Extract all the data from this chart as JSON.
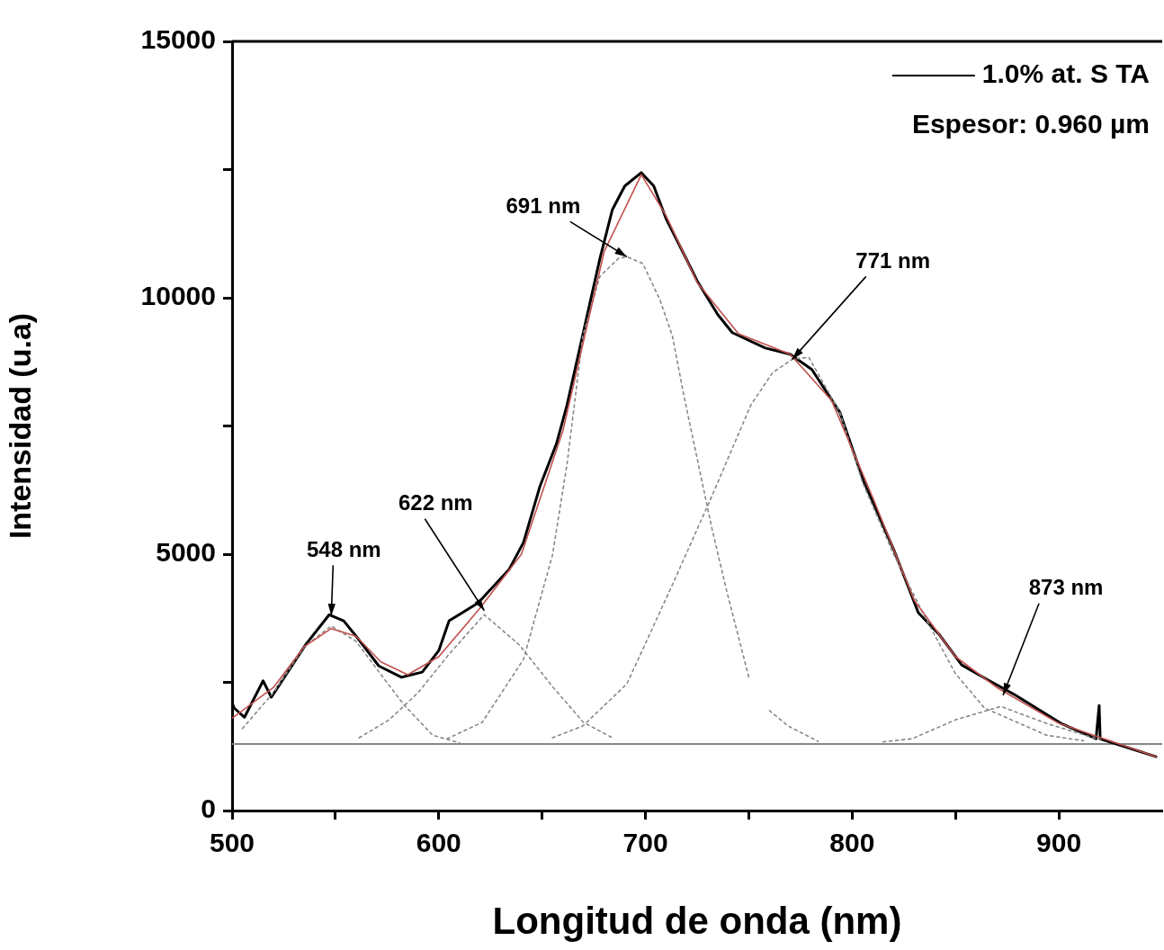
{
  "chart_data": {
    "type": "line",
    "xlabel": "Longitud de onda (nm)",
    "ylabel": "Intensidad (u.a)",
    "xlim": [
      500,
      950
    ],
    "ylim": [
      0,
      15000
    ],
    "xticks": [
      500,
      {
        "value": 550,
        "label": null
      },
      600,
      {
        "value": 650,
        "label": null
      },
      700,
      {
        "value": 750,
        "label": null
      },
      800,
      {
        "value": 850,
        "label": null
      },
      900
    ],
    "yticks": [
      0,
      {
        "value": 2500,
        "label": null
      },
      5000,
      {
        "value": 7500,
        "label": null
      },
      10000,
      {
        "value": 12500,
        "label": null
      },
      15000
    ],
    "grid": false,
    "legend": "top right",
    "marker": "none",
    "series": [
      {
        "name": "1.0% at. S TA",
        "color": "#000000",
        "line_style": "solid",
        "x": [
          500,
          501,
          506,
          515,
          519,
          535.5,
          547,
          554,
          561,
          571,
          582,
          592,
          600,
          605,
          619,
          634,
          641,
          649,
          657,
          662,
          678,
          684,
          690,
          698,
          704,
          710,
          718,
          725,
          735,
          742,
          758,
          770,
          780.5,
          794,
          805.6,
          820,
          832,
          842,
          853,
          866,
          879,
          901,
          918,
          919.5,
          920,
          947
        ],
        "values": [
          2100,
          2000,
          1820,
          2530,
          2210,
          3230,
          3820,
          3700,
          3350,
          2820,
          2600,
          2700,
          3120,
          3700,
          4050,
          4700,
          5230,
          6330,
          7160,
          7900,
          10770,
          11720,
          12180,
          12440,
          12180,
          11540,
          10900,
          10330,
          9670,
          9320,
          9020,
          8900,
          8600,
          7770,
          6420,
          5100,
          3860,
          3440,
          2840,
          2540,
          2250,
          1700,
          1400,
          2050,
          1400,
          1050
        ]
      },
      {
        "color": "#c0504d",
        "line_style": "solid",
        "x": [
          500,
          520,
          535,
          548,
          560,
          572,
          585,
          600,
          620,
          640,
          660,
          680,
          698,
          710,
          725,
          745,
          770,
          790,
          810,
          830,
          850,
          870,
          900,
          947
        ],
        "values": [
          1800,
          2400,
          3200,
          3550,
          3400,
          2900,
          2650,
          3000,
          3950,
          5000,
          7400,
          10900,
          12400,
          11600,
          10300,
          9300,
          8900,
          8000,
          6100,
          4100,
          3000,
          2400,
          1700,
          1050
        ]
      },
      {
        "color": "#888888",
        "line_style": "dotted",
        "x": [
          505,
          520,
          535,
          548,
          560,
          573,
          583,
          597,
          610
        ],
        "values": [
          1600,
          2300,
          3200,
          3600,
          3300,
          2600,
          2070,
          1470,
          1320
        ]
      },
      {
        "color": "#888888",
        "line_style": "dotted",
        "x": [
          561.5,
          576,
          590,
          605,
          622,
          639,
          655,
          670,
          684
        ],
        "values": [
          1420,
          1770,
          2300,
          3050,
          3820,
          3230,
          2420,
          1720,
          1420
        ]
      },
      {
        "color": "#888888",
        "line_style": "dotted",
        "x": [
          604,
          621,
          641,
          655,
          662,
          669.7,
          678,
          687,
          691,
          698.7,
          707,
          713,
          718.6,
          732,
          739,
          750,
          755,
          760,
          769,
          783.5
        ],
        "values": [
          1400,
          1720,
          2950,
          4980,
          6740,
          9260,
          10420,
          10770,
          10800,
          10670,
          9960,
          9260,
          8090,
          5530,
          4330,
          2600,
          null,
          1950,
          1650,
          1350
        ]
      },
      {
        "color": "#888888",
        "line_style": "dotted",
        "x": [
          655,
          669.7,
          691,
          713,
          732,
          751,
          761.5,
          771,
          779,
          794,
          805,
          820,
          835,
          850,
          864,
          894,
          912
        ],
        "values": [
          1420,
          1650,
          2470,
          4400,
          6120,
          7910,
          8540,
          8800,
          8840,
          7770,
          6400,
          5000,
          3790,
          2670,
          2000,
          1470,
          1360
        ]
      },
      {
        "color": "#888888",
        "line_style": "dotted",
        "x": [
          815,
          829,
          850,
          872,
          894,
          920
        ],
        "values": [
          1340,
          1400,
          1770,
          2030,
          1700,
          1380
        ]
      }
    ],
    "ref_lines": [
      {
        "axis": "y",
        "value": 1300,
        "color": "#888888",
        "line_style": "solid"
      }
    ],
    "annotations": [
      "Espesor: 0.960 µm",
      {
        "text": "548 nm",
        "x": 548,
        "y": 3800
      },
      {
        "text": "622 nm",
        "x": 622,
        "y": 3900
      },
      {
        "text": "691 nm",
        "x": 691,
        "y": 10800
      },
      {
        "text": "771 nm",
        "x": 771,
        "y": 8800
      },
      {
        "text": "873 nm",
        "x": 873,
        "y": 2250
      }
    ]
  }
}
